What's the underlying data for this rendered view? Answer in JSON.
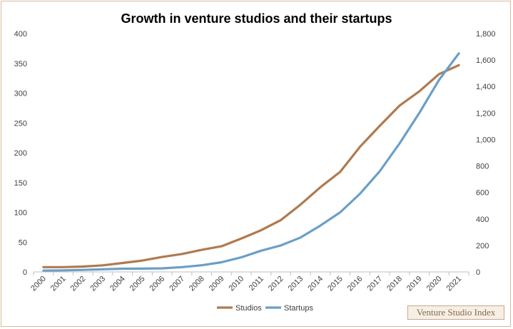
{
  "chart_data": {
    "type": "line",
    "title": "Growth in venture studios and their startups",
    "categories": [
      "2000",
      "2001",
      "2002",
      "2003",
      "2004",
      "2005",
      "2006",
      "2007",
      "2008",
      "2009",
      "2010",
      "2011",
      "2012",
      "2013",
      "2014",
      "2015",
      "2016",
      "2017",
      "2018",
      "2019",
      "2020",
      "2021"
    ],
    "series": [
      {
        "name": "Studios",
        "axis": "left",
        "color": "#b07a4e",
        "values": [
          8,
          8,
          9,
          11,
          15,
          19,
          25,
          30,
          37,
          43,
          56,
          70,
          87,
          113,
          142,
          168,
          210,
          245,
          279,
          303,
          332,
          347
        ]
      },
      {
        "name": "Startups",
        "axis": "right",
        "color": "#6a9fc7",
        "values": [
          10,
          12,
          15,
          20,
          24,
          25,
          27,
          36,
          50,
          73,
          110,
          160,
          200,
          260,
          350,
          450,
          590,
          760,
          970,
          1200,
          1450,
          1650
        ]
      }
    ],
    "y_left": {
      "min": 0,
      "max": 400,
      "ticks": [
        "0",
        "50",
        "100",
        "150",
        "200",
        "250",
        "300",
        "350",
        "400"
      ]
    },
    "y_right": {
      "min": 0,
      "max": 1800,
      "ticks": [
        "0",
        "200",
        "400",
        "600",
        "800",
        "1,000",
        "1,200",
        "1,400",
        "1,600",
        "1,800"
      ]
    },
    "legend_position": "bottom",
    "grid": false
  },
  "watermark": "Venture Studio Index"
}
